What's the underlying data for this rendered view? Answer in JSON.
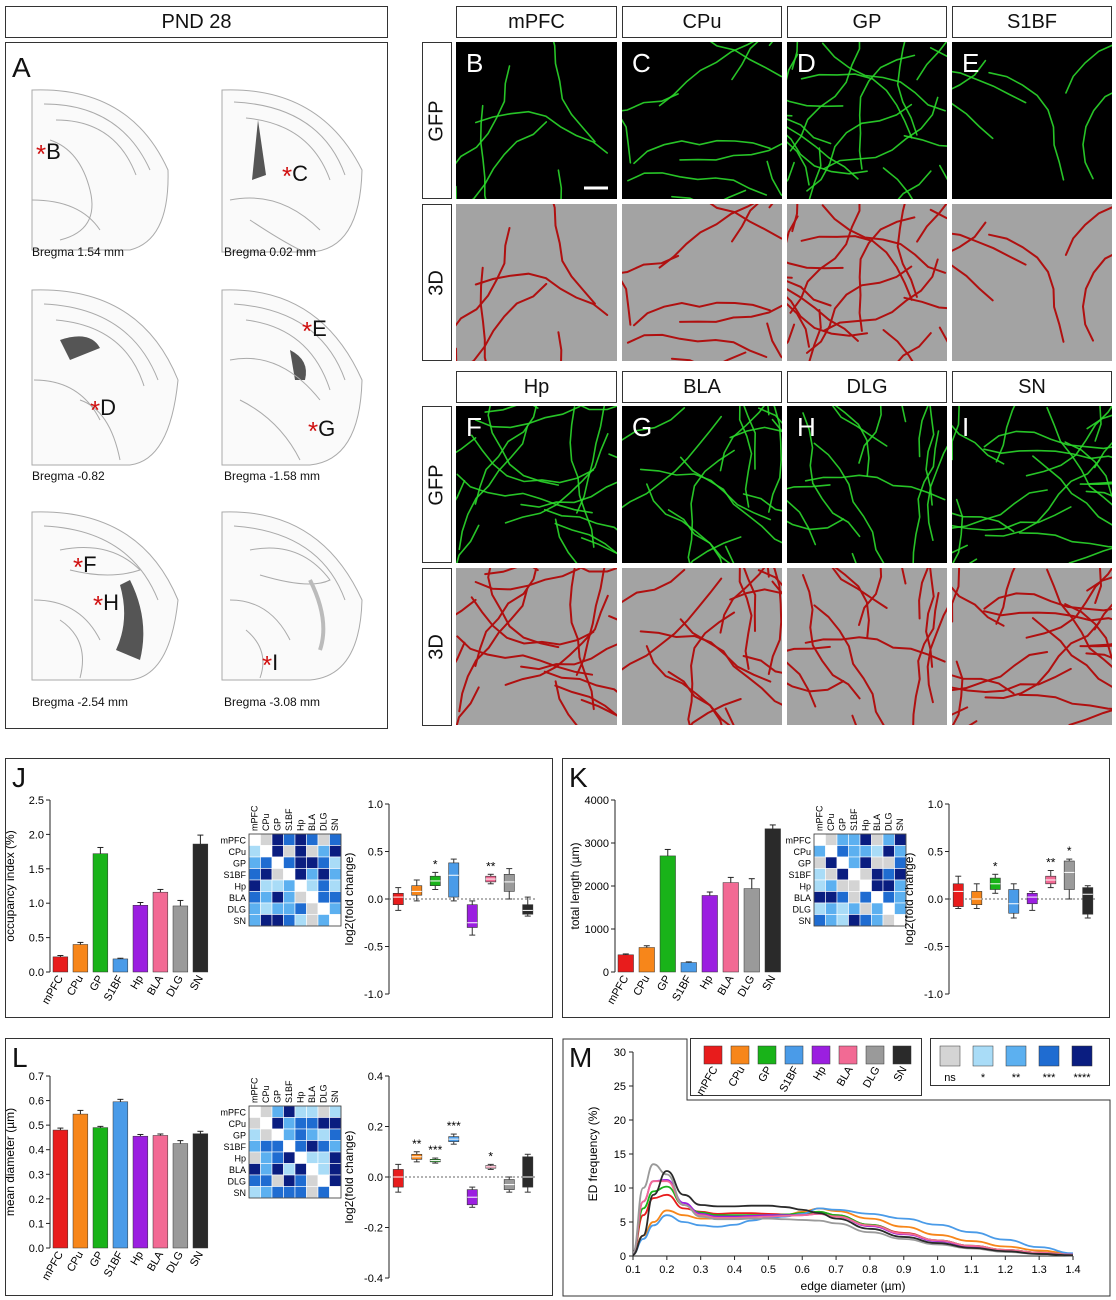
{
  "panel_a": {
    "header": "PND 28",
    "letter": "A",
    "sections": [
      {
        "label": "Bregma 1.54 mm",
        "marker": "B"
      },
      {
        "label": "Bregma 0.02 mm",
        "marker": "C"
      },
      {
        "label": "Bregma -0.82",
        "marker": "D"
      },
      {
        "label": "Bregma -1.58 mm",
        "marker": "E"
      },
      {
        "label": "Bregma -2.54 mm",
        "marker": "F"
      },
      {
        "label": "Bregma -3.08 mm",
        "marker": "I"
      }
    ],
    "extra_marker_g": "G",
    "extra_marker_h": "H"
  },
  "images": {
    "row_label_gfp": "GFP",
    "row_label_3d": "3D",
    "top": [
      {
        "region": "mPFC",
        "letter": "B"
      },
      {
        "region": "CPu",
        "letter": "C"
      },
      {
        "region": "GP",
        "letter": "D"
      },
      {
        "region": "S1BF",
        "letter": "E"
      }
    ],
    "bottom": [
      {
        "region": "Hp",
        "letter": "F"
      },
      {
        "region": "BLA",
        "letter": "G"
      },
      {
        "region": "DLG",
        "letter": "H"
      },
      {
        "region": "SN",
        "letter": "I"
      }
    ]
  },
  "colors": {
    "mPFC": "#e81c1c",
    "CPu": "#f7861a",
    "GP": "#19b319",
    "S1BF": "#4a9be8",
    "Hp": "#9b1fe0",
    "BLA": "#f26a94",
    "DLG": "#9a9a9a",
    "SN": "#2a2a2a",
    "gfp": "#2bd82b",
    "recon": "#b01010",
    "recon_bg": "#a3a3a3"
  },
  "regions": [
    "mPFC",
    "CPu",
    "GP",
    "S1BF",
    "Hp",
    "BLA",
    "DLG",
    "SN"
  ],
  "legend_sig": [
    "ns",
    "*",
    "**",
    "***",
    "****"
  ],
  "legend_sig_colors": [
    "#d4d4d4",
    "#a9dcf7",
    "#5cb0f0",
    "#1f6cd1",
    "#0a1d80"
  ],
  "chart_data": [
    {
      "panel": "J",
      "type": "bar",
      "categories": [
        "mPFC",
        "CPu",
        "GP",
        "S1BF",
        "Hp",
        "BLA",
        "DLG",
        "SN"
      ],
      "values": [
        0.22,
        0.4,
        1.72,
        0.19,
        0.97,
        1.16,
        0.96,
        1.86
      ],
      "errors": [
        0.02,
        0.03,
        0.09,
        0.01,
        0.04,
        0.04,
        0.08,
        0.13
      ],
      "ylabel": "occupancy index (%)",
      "ylim": [
        0,
        2.5
      ],
      "yticks": [
        "0.0",
        "0.5",
        "1.0",
        "1.5",
        "2.0",
        "2.5"
      ]
    },
    {
      "panel": "J",
      "type": "box",
      "categories": [
        "mPFC",
        "CPu",
        "GP",
        "S1BF",
        "Hp",
        "BLA",
        "DLG",
        "SN"
      ],
      "ylabel": "log2(fold change)",
      "ylim": [
        -1.0,
        1.0
      ],
      "yticks": [
        "-1.0",
        "-0.5",
        "0.0",
        "0.5",
        "1.0"
      ],
      "boxes": [
        {
          "min": -0.12,
          "q1": -0.06,
          "med": 0.02,
          "q3": 0.06,
          "max": 0.12
        },
        {
          "min": -0.02,
          "q1": 0.04,
          "med": 0.08,
          "q3": 0.14,
          "max": 0.2
        },
        {
          "min": 0.1,
          "q1": 0.14,
          "med": 0.19,
          "q3": 0.24,
          "max": 0.28
        },
        {
          "min": -0.02,
          "q1": 0.02,
          "med": 0.25,
          "q3": 0.38,
          "max": 0.42
        },
        {
          "min": -0.38,
          "q1": -0.3,
          "med": -0.25,
          "q3": -0.06,
          "max": -0.02
        },
        {
          "min": 0.16,
          "q1": 0.18,
          "med": 0.21,
          "q3": 0.24,
          "max": 0.26
        },
        {
          "min": 0.0,
          "q1": 0.08,
          "med": 0.18,
          "q3": 0.26,
          "max": 0.32
        },
        {
          "min": -0.18,
          "q1": -0.16,
          "med": -0.12,
          "q3": -0.06,
          "max": 0.02
        }
      ],
      "stars": [
        "",
        "",
        "*",
        "",
        "",
        "**",
        "",
        ""
      ]
    },
    {
      "panel": "K",
      "type": "bar",
      "categories": [
        "mPFC",
        "CPu",
        "GP",
        "S1BF",
        "Hp",
        "BLA",
        "DLG",
        "SN"
      ],
      "values": [
        400,
        570,
        2700,
        220,
        1780,
        2080,
        1940,
        3330
      ],
      "errors": [
        20,
        40,
        150,
        15,
        80,
        120,
        230,
        90
      ],
      "ylabel": "total length (µm)",
      "ylim": [
        0,
        4000
      ],
      "yticks": [
        "0",
        "1000",
        "2000",
        "3000",
        "4000"
      ]
    },
    {
      "panel": "K",
      "type": "box",
      "categories": [
        "mPFC",
        "CPu",
        "GP",
        "S1BF",
        "Hp",
        "BLA",
        "DLG",
        "SN"
      ],
      "ylabel": "log2(fold change)",
      "ylim": [
        -1.0,
        1.0
      ],
      "yticks": [
        "-1.0",
        "-0.5",
        "0.0",
        "0.5",
        "1.0"
      ],
      "boxes": [
        {
          "min": -0.1,
          "q1": -0.08,
          "med": 0.08,
          "q3": 0.16,
          "max": 0.24
        },
        {
          "min": -0.1,
          "q1": -0.06,
          "med": 0.0,
          "q3": 0.08,
          "max": 0.16
        },
        {
          "min": 0.06,
          "q1": 0.1,
          "med": 0.16,
          "q3": 0.22,
          "max": 0.26
        },
        {
          "min": -0.2,
          "q1": -0.15,
          "med": -0.05,
          "q3": 0.1,
          "max": 0.16
        },
        {
          "min": -0.12,
          "q1": -0.05,
          "med": 0.02,
          "q3": 0.06,
          "max": 0.08
        },
        {
          "min": 0.12,
          "q1": 0.16,
          "med": 0.2,
          "q3": 0.24,
          "max": 0.3
        },
        {
          "min": 0.0,
          "q1": 0.1,
          "med": 0.28,
          "q3": 0.4,
          "max": 0.42
        },
        {
          "min": -0.2,
          "q1": -0.16,
          "med": 0.05,
          "q3": 0.12,
          "max": 0.14
        }
      ],
      "stars": [
        "",
        "",
        "*",
        "",
        "",
        "**",
        "*",
        ""
      ]
    },
    {
      "panel": "L",
      "type": "bar",
      "categories": [
        "mPFC",
        "CPu",
        "GP",
        "S1BF",
        "Hp",
        "BLA",
        "DLG",
        "SN"
      ],
      "values": [
        0.48,
        0.545,
        0.49,
        0.595,
        0.455,
        0.458,
        0.425,
        0.465
      ],
      "errors": [
        0.008,
        0.015,
        0.005,
        0.01,
        0.007,
        0.006,
        0.012,
        0.01
      ],
      "ylabel": "mean diameter (µm)",
      "ylim": [
        0,
        0.7
      ],
      "yticks": [
        "0.0",
        "0.1",
        "0.2",
        "0.3",
        "0.4",
        "0.5",
        "0.6",
        "0.7"
      ]
    },
    {
      "panel": "L",
      "type": "box",
      "categories": [
        "mPFC",
        "CPu",
        "GP",
        "S1BF",
        "Hp",
        "BLA",
        "DLG",
        "SN"
      ],
      "ylabel": "log2(fold change)",
      "ylim": [
        -0.4,
        0.4
      ],
      "yticks": [
        "-0.4",
        "-0.2",
        "0.0",
        "0.2",
        "0.4"
      ],
      "boxes": [
        {
          "min": -0.06,
          "q1": -0.04,
          "med": 0.0,
          "q3": 0.03,
          "max": 0.05
        },
        {
          "min": 0.06,
          "q1": 0.07,
          "med": 0.08,
          "q3": 0.09,
          "max": 0.1
        },
        {
          "min": 0.055,
          "q1": 0.06,
          "med": 0.065,
          "q3": 0.07,
          "max": 0.075
        },
        {
          "min": 0.13,
          "q1": 0.14,
          "med": 0.15,
          "q3": 0.16,
          "max": 0.17
        },
        {
          "min": -0.12,
          "q1": -0.11,
          "med": -0.08,
          "q3": -0.05,
          "max": -0.04
        },
        {
          "min": 0.03,
          "q1": 0.035,
          "med": 0.04,
          "q3": 0.045,
          "max": 0.05
        },
        {
          "min": -0.06,
          "q1": -0.05,
          "med": -0.03,
          "q3": -0.01,
          "max": 0.0
        },
        {
          "min": -0.06,
          "q1": -0.04,
          "med": 0.0,
          "q3": 0.08,
          "max": 0.09
        }
      ],
      "stars": [
        "",
        "**",
        "***",
        "***",
        "",
        "*",
        "",
        ""
      ]
    },
    {
      "panel": "M",
      "type": "line",
      "xlabel": "edge diameter (µm)",
      "ylabel": "ED frequency (%)",
      "xlim": [
        0.1,
        1.4
      ],
      "ylim": [
        0,
        30
      ],
      "xticks": [
        "0.1",
        "0.2",
        "0.3",
        "0.4",
        "0.5",
        "0.6",
        "0.7",
        "0.8",
        "0.9",
        "1.0",
        "1.1",
        "1.2",
        "1.3",
        "1.4"
      ],
      "yticks": [
        "0",
        "5",
        "10",
        "15",
        "20",
        "25",
        "30"
      ],
      "x": [
        0.1,
        0.13,
        0.16,
        0.2,
        0.25,
        0.3,
        0.35,
        0.4,
        0.45,
        0.5,
        0.55,
        0.6,
        0.65,
        0.7,
        0.8,
        0.9,
        1.0,
        1.1,
        1.2,
        1.3,
        1.4
      ],
      "series": [
        {
          "name": "mPFC",
          "values": [
            0.5,
            6,
            8.5,
            9,
            7,
            6.5,
            6.2,
            6.3,
            6.3,
            6.2,
            6.1,
            6.2,
            6.5,
            6,
            4.6,
            3.4,
            2.3,
            1.5,
            0.9,
            0.5,
            0.2
          ]
        },
        {
          "name": "CPu",
          "values": [
            0.5,
            3,
            5,
            6.7,
            6,
            5.5,
            5.5,
            5.8,
            6,
            6,
            6,
            6.5,
            7,
            6.6,
            5.5,
            4.3,
            3.1,
            2.2,
            1.4,
            0.8,
            0.3
          ]
        },
        {
          "name": "GP",
          "values": [
            0.5,
            7,
            9.5,
            10.2,
            7.5,
            6.4,
            6,
            6,
            6,
            6,
            6.1,
            6.3,
            6.5,
            6,
            4.6,
            3.3,
            2.3,
            1.5,
            0.9,
            0.5,
            0.2
          ]
        },
        {
          "name": "S1BF",
          "values": [
            0.3,
            2.5,
            4.5,
            6,
            5,
            4.5,
            4.3,
            4.6,
            5.2,
            5.6,
            5.8,
            6.2,
            7,
            6.8,
            6.2,
            5.5,
            4.6,
            3.5,
            2.4,
            1.3,
            0.4
          ]
        },
        {
          "name": "Hp",
          "values": [
            0.5,
            8,
            11,
            11.2,
            7.8,
            6.2,
            5.8,
            5.8,
            5.9,
            6,
            6,
            6,
            6.2,
            5.8,
            4.4,
            3.2,
            2.2,
            1.4,
            0.8,
            0.4,
            0.2
          ]
        },
        {
          "name": "BLA",
          "values": [
            0.5,
            8,
            11,
            11,
            7.5,
            6,
            5.6,
            5.6,
            5.7,
            5.8,
            5.9,
            6,
            6.2,
            5.8,
            4.5,
            3.3,
            2.3,
            1.5,
            0.9,
            0.5,
            0.2
          ]
        },
        {
          "name": "DLG",
          "values": [
            0.5,
            10,
            13.5,
            12,
            7.5,
            5.8,
            5.4,
            5.4,
            5.5,
            5.5,
            5.4,
            5.3,
            5.2,
            4.8,
            3.5,
            2.5,
            1.7,
            1.1,
            0.6,
            0.3,
            0.1
          ]
        },
        {
          "name": "SN",
          "values": [
            0.2,
            3,
            9,
            12.5,
            9,
            7.5,
            7.3,
            7.3,
            7.4,
            7.4,
            7.2,
            6.8,
            6.3,
            5.5,
            4,
            2.8,
            1.9,
            1.2,
            0.7,
            0.3,
            0.1
          ]
        }
      ]
    }
  ]
}
